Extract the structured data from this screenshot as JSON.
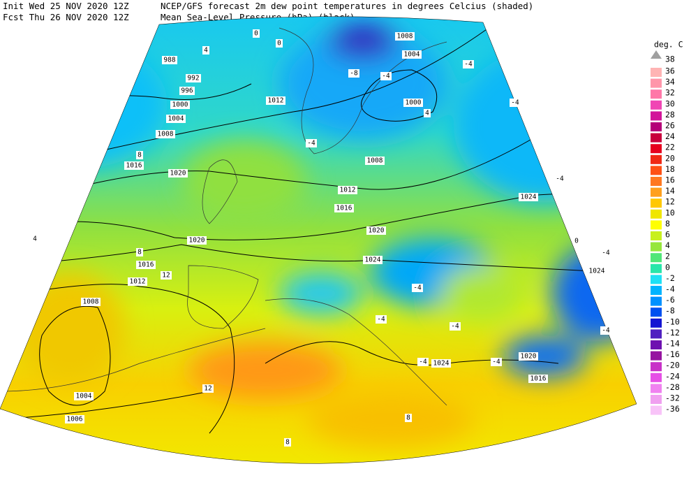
{
  "header": {
    "init": "Init  Wed 25 NOV 2020 12Z",
    "forecast": "Fcst Thu 26 NOV 2020 12Z",
    "title_line_1": "NCEP/GFS forecast 2m dew point temperatures in degrees Celcius (shaded)",
    "title_line_2": "Mean Sea-Level Pressure (hPa) (black)."
  },
  "legend": {
    "unit": "deg. C",
    "levels": [
      {
        "value": 38,
        "color": "#a0a0a0"
      },
      {
        "value": 36,
        "color": "#ffb4b4"
      },
      {
        "value": 34,
        "color": "#ff96aa"
      },
      {
        "value": 32,
        "color": "#ff78a8"
      },
      {
        "value": 30,
        "color": "#f046b4"
      },
      {
        "value": 28,
        "color": "#d2149a"
      },
      {
        "value": 26,
        "color": "#b40078"
      },
      {
        "value": 24,
        "color": "#c8003c"
      },
      {
        "value": 22,
        "color": "#e6001e"
      },
      {
        "value": 20,
        "color": "#f02814"
      },
      {
        "value": 18,
        "color": "#ff5014"
      },
      {
        "value": 16,
        "color": "#ff7820"
      },
      {
        "value": 14,
        "color": "#ffa01e"
      },
      {
        "value": 12,
        "color": "#ffc800"
      },
      {
        "value": 10,
        "color": "#f0e600"
      },
      {
        "value": 8,
        "color": "#ffff00"
      },
      {
        "value": 6,
        "color": "#c8f01e"
      },
      {
        "value": 4,
        "color": "#96e63c"
      },
      {
        "value": 2,
        "color": "#50e678"
      },
      {
        "value": 0,
        "color": "#28e6aa"
      },
      {
        "value": -2,
        "color": "#1ee1f5"
      },
      {
        "value": -4,
        "color": "#00b4ff"
      },
      {
        "value": -6,
        "color": "#0091ff"
      },
      {
        "value": -8,
        "color": "#0050f0"
      },
      {
        "value": -10,
        "color": "#1414d2"
      },
      {
        "value": -12,
        "color": "#5020c0"
      },
      {
        "value": -14,
        "color": "#6e10b0"
      },
      {
        "value": -16,
        "color": "#9614a0"
      },
      {
        "value": -20,
        "color": "#c832c8"
      },
      {
        "value": -24,
        "color": "#e650e6"
      },
      {
        "value": -28,
        "color": "#f082f0"
      },
      {
        "value": -32,
        "color": "#f0a0f0"
      },
      {
        "value": -36,
        "color": "#f8c3f8"
      }
    ]
  },
  "map": {
    "pressure_labels": [
      "1008",
      "1004",
      "988",
      "992",
      "996",
      "1000",
      "1004",
      "1008",
      "1012",
      "1000",
      "1008",
      "1016",
      "1020",
      "1012",
      "1016",
      "1024",
      "1020",
      "1020",
      "1024",
      "1016",
      "1024",
      "1012",
      "1008",
      "1020",
      "1024",
      "1016",
      "1004",
      "1006"
    ],
    "dew_point_labels": [
      "0",
      "0",
      "4",
      "-8",
      "-4",
      "-4",
      "-4",
      "-4",
      "4",
      "-4",
      "0",
      "-4",
      "-4",
      "4",
      "8",
      "12",
      "8",
      "12",
      "8",
      "-4",
      "-4",
      "-4",
      "-4",
      "-4",
      "8"
    ]
  }
}
